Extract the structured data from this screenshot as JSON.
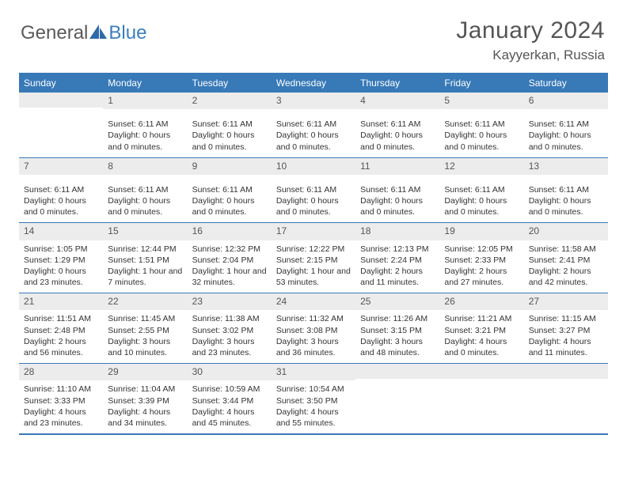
{
  "brand": {
    "part1": "General",
    "part2": "Blue"
  },
  "title": "January 2024",
  "location": "Kayyerkan, Russia",
  "colors": {
    "header_bar": "#3879b7",
    "daynum_bg": "#ececec",
    "text": "#333333",
    "title_text": "#555555"
  },
  "dow": [
    "Sunday",
    "Monday",
    "Tuesday",
    "Wednesday",
    "Thursday",
    "Friday",
    "Saturday"
  ],
  "weeks": [
    [
      {
        "num": "",
        "lines": []
      },
      {
        "num": "1",
        "lines": [
          "Sunset: 6:11 AM",
          "Daylight: 0 hours",
          "and 0 minutes."
        ]
      },
      {
        "num": "2",
        "lines": [
          "Sunset: 6:11 AM",
          "Daylight: 0 hours",
          "and 0 minutes."
        ]
      },
      {
        "num": "3",
        "lines": [
          "Sunset: 6:11 AM",
          "Daylight: 0 hours",
          "and 0 minutes."
        ]
      },
      {
        "num": "4",
        "lines": [
          "Sunset: 6:11 AM",
          "Daylight: 0 hours",
          "and 0 minutes."
        ]
      },
      {
        "num": "5",
        "lines": [
          "Sunset: 6:11 AM",
          "Daylight: 0 hours",
          "and 0 minutes."
        ]
      },
      {
        "num": "6",
        "lines": [
          "Sunset: 6:11 AM",
          "Daylight: 0 hours",
          "and 0 minutes."
        ]
      }
    ],
    [
      {
        "num": "7",
        "lines": [
          "Sunset: 6:11 AM",
          "Daylight: 0 hours",
          "and 0 minutes."
        ]
      },
      {
        "num": "8",
        "lines": [
          "Sunset: 6:11 AM",
          "Daylight: 0 hours",
          "and 0 minutes."
        ]
      },
      {
        "num": "9",
        "lines": [
          "Sunset: 6:11 AM",
          "Daylight: 0 hours",
          "and 0 minutes."
        ]
      },
      {
        "num": "10",
        "lines": [
          "Sunset: 6:11 AM",
          "Daylight: 0 hours",
          "and 0 minutes."
        ]
      },
      {
        "num": "11",
        "lines": [
          "Sunset: 6:11 AM",
          "Daylight: 0 hours",
          "and 0 minutes."
        ]
      },
      {
        "num": "12",
        "lines": [
          "Sunset: 6:11 AM",
          "Daylight: 0 hours",
          "and 0 minutes."
        ]
      },
      {
        "num": "13",
        "lines": [
          "Sunset: 6:11 AM",
          "Daylight: 0 hours",
          "and 0 minutes."
        ]
      }
    ],
    [
      {
        "num": "14",
        "lines": [
          "Sunrise: 1:05 PM",
          "Sunset: 1:29 PM",
          "Daylight: 0 hours",
          "and 23 minutes."
        ]
      },
      {
        "num": "15",
        "lines": [
          "Sunrise: 12:44 PM",
          "Sunset: 1:51 PM",
          "Daylight: 1 hour and",
          "7 minutes."
        ]
      },
      {
        "num": "16",
        "lines": [
          "Sunrise: 12:32 PM",
          "Sunset: 2:04 PM",
          "Daylight: 1 hour and",
          "32 minutes."
        ]
      },
      {
        "num": "17",
        "lines": [
          "Sunrise: 12:22 PM",
          "Sunset: 2:15 PM",
          "Daylight: 1 hour and",
          "53 minutes."
        ]
      },
      {
        "num": "18",
        "lines": [
          "Sunrise: 12:13 PM",
          "Sunset: 2:24 PM",
          "Daylight: 2 hours",
          "and 11 minutes."
        ]
      },
      {
        "num": "19",
        "lines": [
          "Sunrise: 12:05 PM",
          "Sunset: 2:33 PM",
          "Daylight: 2 hours",
          "and 27 minutes."
        ]
      },
      {
        "num": "20",
        "lines": [
          "Sunrise: 11:58 AM",
          "Sunset: 2:41 PM",
          "Daylight: 2 hours",
          "and 42 minutes."
        ]
      }
    ],
    [
      {
        "num": "21",
        "lines": [
          "Sunrise: 11:51 AM",
          "Sunset: 2:48 PM",
          "Daylight: 2 hours",
          "and 56 minutes."
        ]
      },
      {
        "num": "22",
        "lines": [
          "Sunrise: 11:45 AM",
          "Sunset: 2:55 PM",
          "Daylight: 3 hours",
          "and 10 minutes."
        ]
      },
      {
        "num": "23",
        "lines": [
          "Sunrise: 11:38 AM",
          "Sunset: 3:02 PM",
          "Daylight: 3 hours",
          "and 23 minutes."
        ]
      },
      {
        "num": "24",
        "lines": [
          "Sunrise: 11:32 AM",
          "Sunset: 3:08 PM",
          "Daylight: 3 hours",
          "and 36 minutes."
        ]
      },
      {
        "num": "25",
        "lines": [
          "Sunrise: 11:26 AM",
          "Sunset: 3:15 PM",
          "Daylight: 3 hours",
          "and 48 minutes."
        ]
      },
      {
        "num": "26",
        "lines": [
          "Sunrise: 11:21 AM",
          "Sunset: 3:21 PM",
          "Daylight: 4 hours",
          "and 0 minutes."
        ]
      },
      {
        "num": "27",
        "lines": [
          "Sunrise: 11:15 AM",
          "Sunset: 3:27 PM",
          "Daylight: 4 hours",
          "and 11 minutes."
        ]
      }
    ],
    [
      {
        "num": "28",
        "lines": [
          "Sunrise: 11:10 AM",
          "Sunset: 3:33 PM",
          "Daylight: 4 hours",
          "and 23 minutes."
        ]
      },
      {
        "num": "29",
        "lines": [
          "Sunrise: 11:04 AM",
          "Sunset: 3:39 PM",
          "Daylight: 4 hours",
          "and 34 minutes."
        ]
      },
      {
        "num": "30",
        "lines": [
          "Sunrise: 10:59 AM",
          "Sunset: 3:44 PM",
          "Daylight: 4 hours",
          "and 45 minutes."
        ]
      },
      {
        "num": "31",
        "lines": [
          "Sunrise: 10:54 AM",
          "Sunset: 3:50 PM",
          "Daylight: 4 hours",
          "and 55 minutes."
        ]
      },
      {
        "num": "",
        "lines": []
      },
      {
        "num": "",
        "lines": []
      },
      {
        "num": "",
        "lines": []
      }
    ]
  ]
}
